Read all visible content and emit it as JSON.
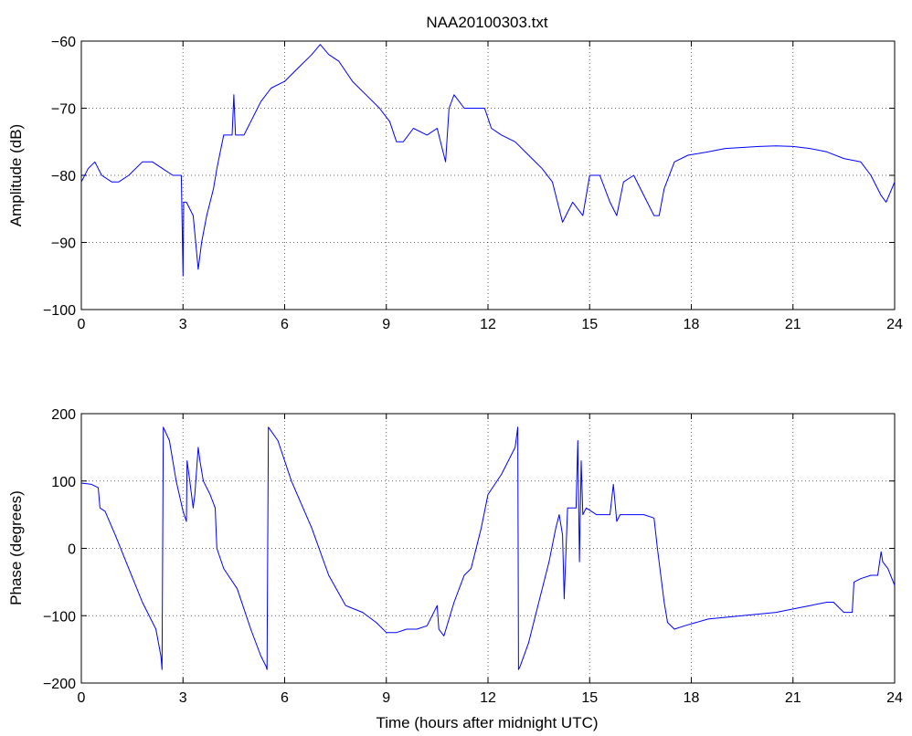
{
  "chart_data": [
    {
      "type": "line",
      "title": "NAA20100303.txt",
      "xlabel": "",
      "ylabel": "Amplitude (dB)",
      "xlim": [
        0,
        24
      ],
      "ylim": [
        -100,
        -60
      ],
      "xticks": [
        "0",
        "3",
        "6",
        "9",
        "12",
        "15",
        "18",
        "21",
        "24"
      ],
      "yticks": [
        "-60",
        "-70",
        "-80",
        "-90",
        "-100"
      ],
      "grid": true,
      "series": [
        {
          "color": "#0000ff",
          "x": [
            0,
            0.2,
            0.4,
            0.6,
            0.9,
            1.1,
            1.4,
            1.8,
            2.1,
            2.4,
            2.7,
            2.95,
            3.0,
            3.02,
            3.1,
            3.3,
            3.45,
            3.55,
            3.7,
            3.9,
            4.0,
            4.2,
            4.45,
            4.5,
            4.55,
            4.8,
            5.0,
            5.3,
            5.6,
            6.0,
            6.4,
            6.8,
            7.05,
            7.3,
            7.6,
            8.0,
            8.4,
            8.8,
            9.1,
            9.3,
            9.5,
            9.8,
            10.2,
            10.5,
            10.65,
            10.75,
            10.85,
            11.0,
            11.3,
            11.6,
            11.9,
            12.1,
            12.4,
            12.8,
            13.2,
            13.6,
            13.9,
            14.1,
            14.2,
            14.5,
            14.8,
            15.0,
            15.3,
            15.6,
            15.8,
            16.0,
            16.3,
            16.6,
            16.9,
            17.05,
            17.2,
            17.5,
            17.9,
            18.5,
            19.0,
            20.0,
            20.5,
            21.0,
            21.5,
            22.0,
            22.5,
            23.0,
            23.3,
            23.6,
            23.75,
            24.0
          ],
          "y": [
            -81,
            -79,
            -78,
            -80,
            -81,
            -81,
            -80,
            -78,
            -78,
            -79,
            -80,
            -80,
            -95,
            -84,
            -84,
            -86,
            -94,
            -90,
            -86,
            -82,
            -79,
            -74,
            -74,
            -68,
            -74,
            -74,
            -72,
            -69,
            -67,
            -66,
            -64,
            -62,
            -60.5,
            -62,
            -63,
            -66,
            -68,
            -70,
            -72,
            -75,
            -75,
            -73,
            -74,
            -73,
            -76,
            -78,
            -70,
            -68,
            -70,
            -70,
            -70,
            -73,
            -74,
            -75,
            -77,
            -79,
            -81,
            -85,
            -87,
            -84,
            -86,
            -80,
            -80,
            -84,
            -86,
            -81,
            -80,
            -83,
            -86,
            -86,
            -82,
            -78,
            -77,
            -76.5,
            -76,
            -75.7,
            -75.6,
            -75.7,
            -76,
            -76.5,
            -77.5,
            -78,
            -80,
            -83,
            -84,
            -81
          ]
        }
      ]
    },
    {
      "type": "line",
      "title": "",
      "xlabel": "Time (hours after midnight UTC)",
      "ylabel": "Phase (degrees)",
      "xlim": [
        0,
        24
      ],
      "ylim": [
        -200,
        200
      ],
      "xticks": [
        "0",
        "3",
        "6",
        "9",
        "12",
        "15",
        "18",
        "21",
        "24"
      ],
      "yticks": [
        "200",
        "100",
        "0",
        "-100",
        "-200"
      ],
      "grid": true,
      "series": [
        {
          "color": "#0000ff",
          "x": [
            0,
            0.3,
            0.5,
            0.55,
            0.7,
            1.0,
            1.4,
            1.8,
            2.2,
            2.35,
            2.38,
            2.42,
            2.6,
            2.8,
            3.0,
            3.1,
            3.12,
            3.2,
            3.3,
            3.35,
            3.45,
            3.5,
            3.6,
            3.8,
            3.95,
            4.0,
            4.2,
            4.6,
            5.0,
            5.3,
            5.45,
            5.48,
            5.52,
            5.8,
            6.2,
            6.8,
            7.3,
            7.8,
            8.3,
            8.7,
            9.0,
            9.3,
            9.6,
            9.9,
            10.2,
            10.5,
            10.55,
            10.7,
            11.0,
            11.3,
            11.5,
            11.8,
            12.0,
            12.4,
            12.8,
            12.88,
            12.9,
            12.95,
            13.2,
            13.5,
            13.8,
            14.0,
            14.1,
            14.2,
            14.25,
            14.35,
            14.5,
            14.6,
            14.65,
            14.7,
            14.75,
            14.8,
            14.9,
            15.2,
            15.6,
            15.7,
            15.8,
            15.9,
            16.3,
            16.6,
            16.9,
            17.0,
            17.2,
            17.3,
            17.5,
            17.8,
            18.5,
            19.5,
            20.5,
            21.0,
            21.5,
            22.0,
            22.2,
            22.5,
            22.75,
            22.8,
            23.0,
            23.3,
            23.5,
            23.6,
            23.65,
            23.8,
            24.0
          ],
          "y": [
            97,
            95,
            90,
            60,
            55,
            20,
            -30,
            -80,
            -120,
            -160,
            -180,
            180,
            160,
            100,
            55,
            40,
            130,
            100,
            60,
            80,
            150,
            130,
            100,
            80,
            60,
            0,
            -30,
            -60,
            -120,
            -160,
            -175,
            -180,
            180,
            160,
            100,
            30,
            -40,
            -85,
            -95,
            -110,
            -125,
            -125,
            -120,
            -120,
            -115,
            -85,
            -120,
            -130,
            -80,
            -40,
            -30,
            30,
            80,
            110,
            150,
            180,
            -180,
            -175,
            -140,
            -80,
            -20,
            30,
            50,
            20,
            -75,
            60,
            60,
            60,
            160,
            -20,
            130,
            50,
            60,
            50,
            50,
            95,
            40,
            50,
            50,
            50,
            45,
            0,
            -80,
            -110,
            -120,
            -115,
            -105,
            -100,
            -95,
            -90,
            -85,
            -80,
            -80,
            -95,
            -95,
            -50,
            -45,
            -40,
            -40,
            -5,
            -20,
            -30,
            -55
          ]
        }
      ]
    }
  ]
}
